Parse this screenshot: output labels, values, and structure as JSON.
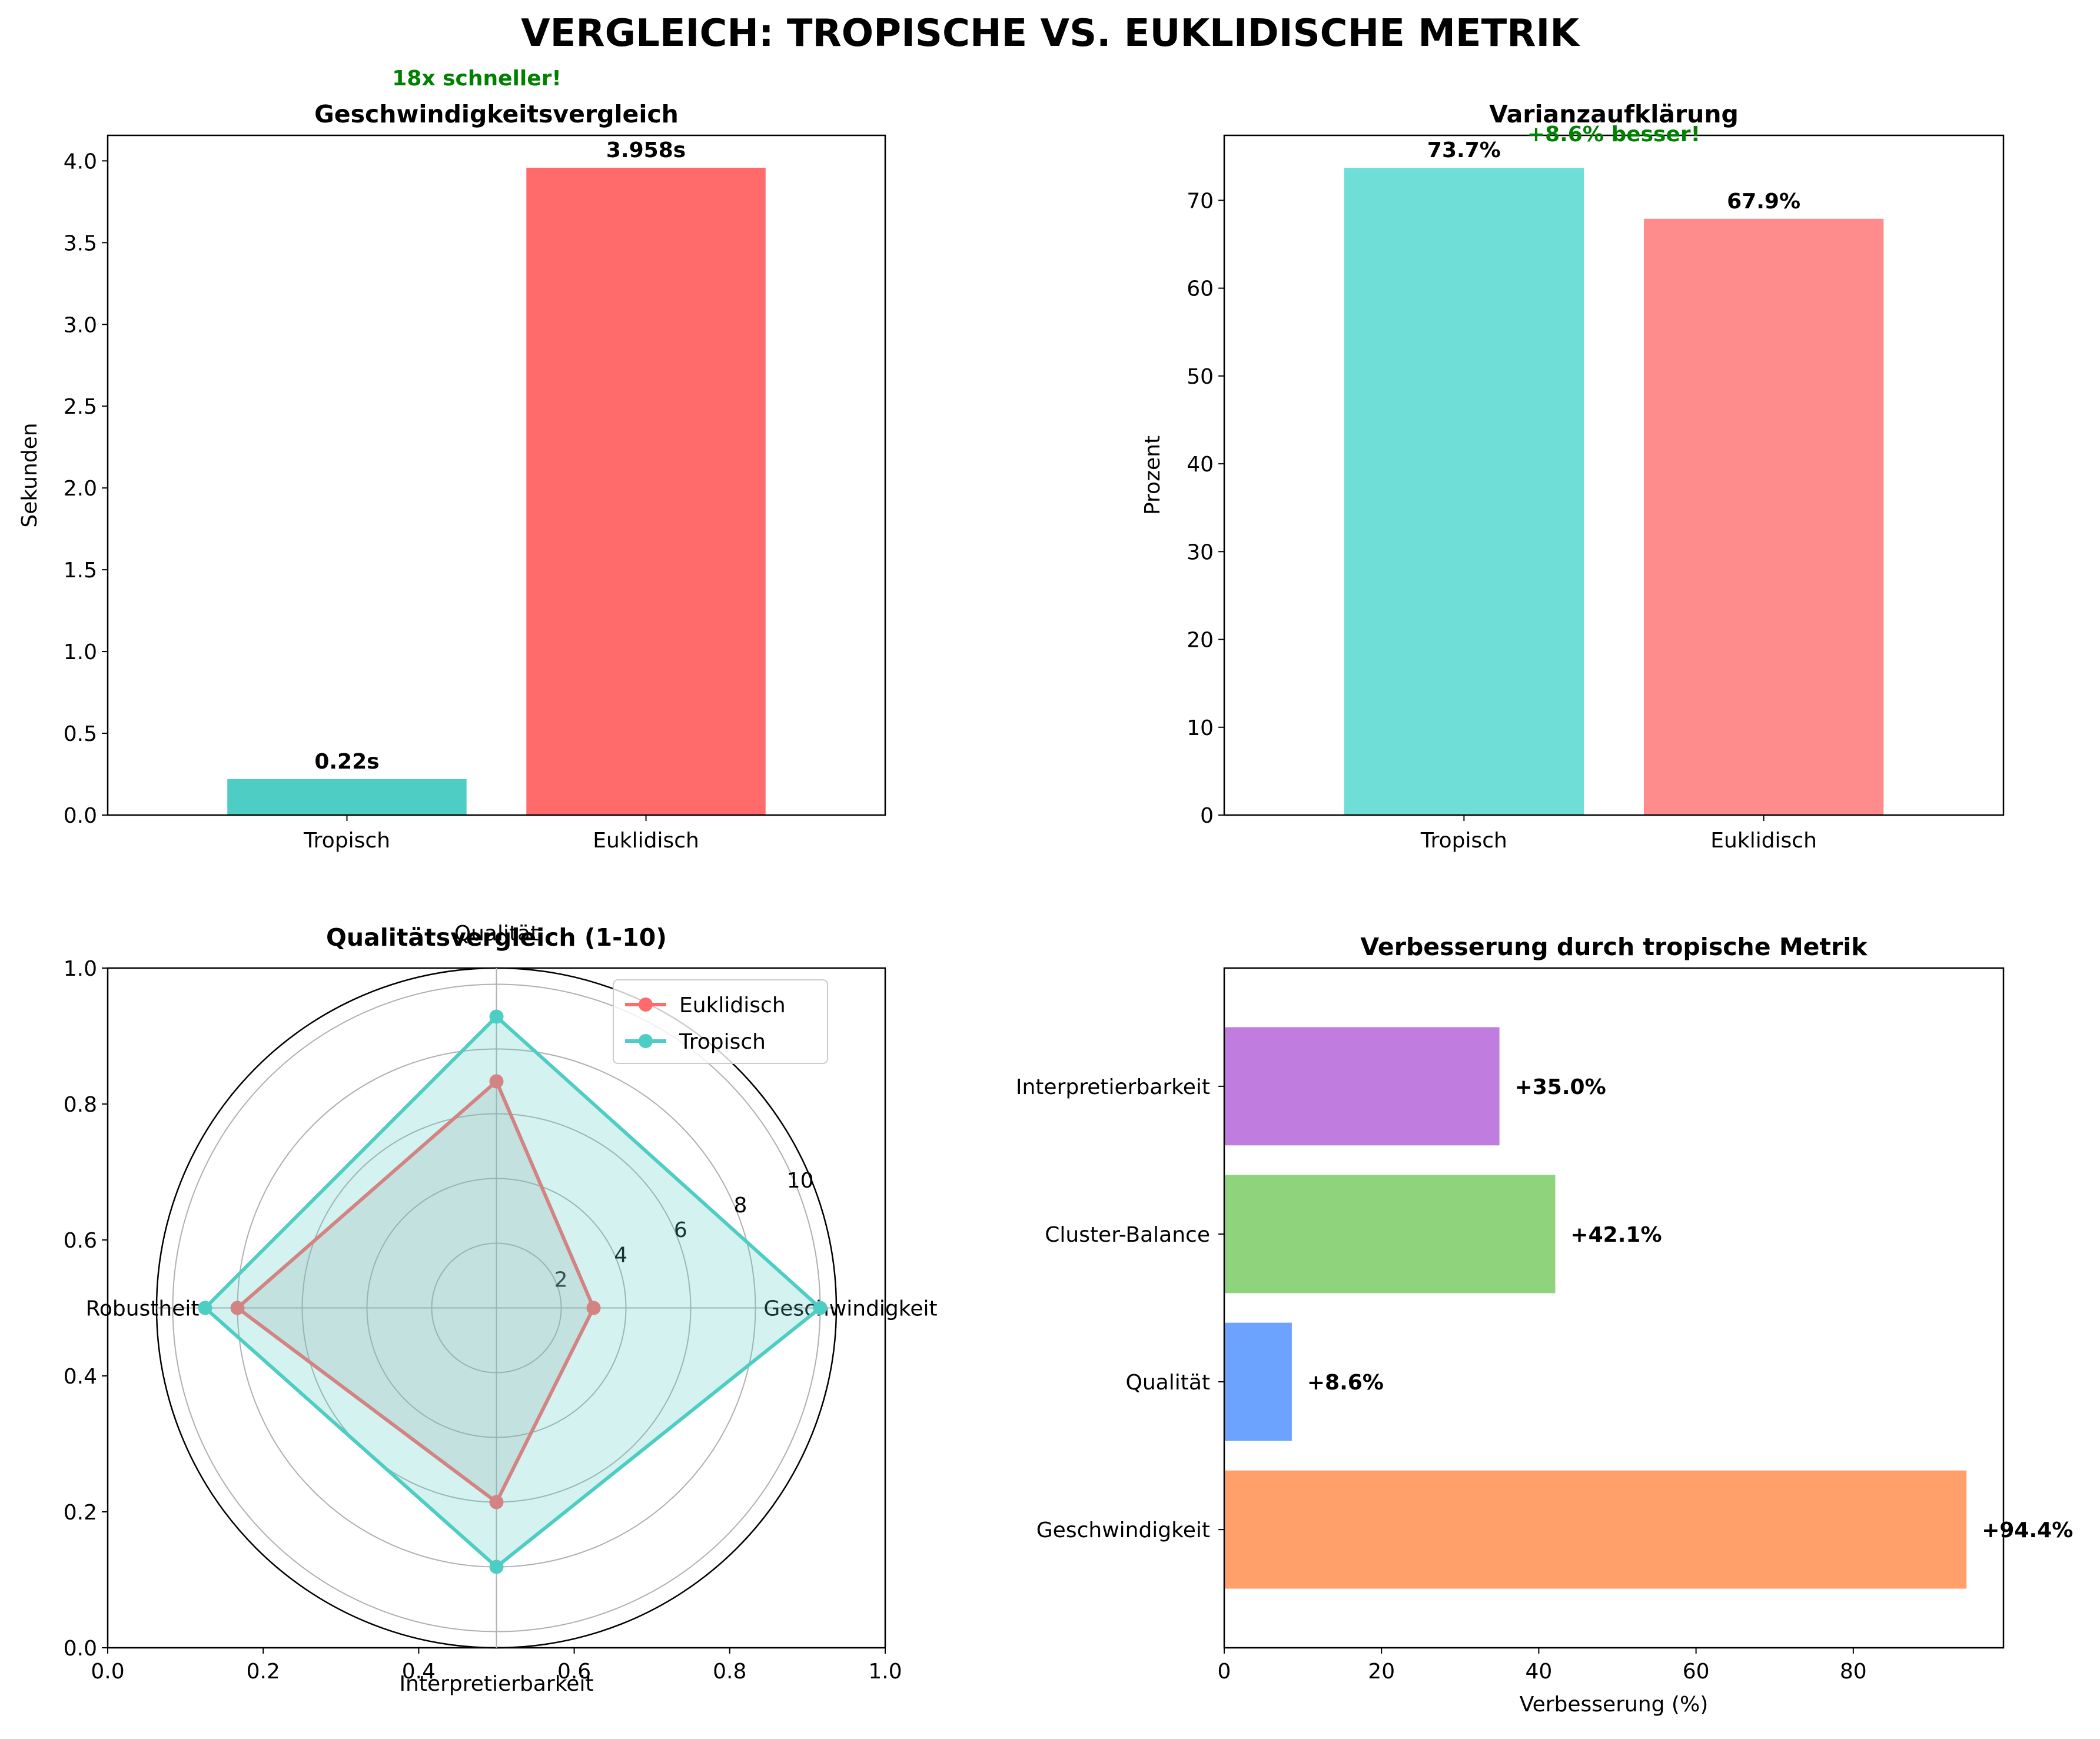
{
  "title": "VERGLEICH: TROPISCHE VS. EUKLIDISCHE METRIK",
  "chart_data": [
    {
      "type": "bar",
      "title": "Geschwindigkeitsvergleich",
      "xlabel": "",
      "ylabel": "Sekunden",
      "categories": [
        "Tropisch",
        "Euklidisch"
      ],
      "values": [
        0.22,
        3.958
      ],
      "value_labels": [
        "0.22s",
        "3.958s"
      ],
      "colors": [
        "#4ECDC4",
        "#FF6B6B"
      ],
      "ylim": [
        0,
        4.156
      ],
      "yticks": [
        0.0,
        0.5,
        1.0,
        1.5,
        2.0,
        2.5,
        3.0,
        3.5,
        4.0
      ],
      "ytick_labels": [
        "0.0",
        "0.5",
        "1.0",
        "1.5",
        "2.0",
        "2.5",
        "3.0",
        "3.5",
        "4.0"
      ],
      "annotation": "18x schneller!"
    },
    {
      "type": "bar",
      "title": "Varianzaufklärung",
      "xlabel": "",
      "ylabel": "Prozent",
      "categories": [
        "Tropisch",
        "Euklidisch"
      ],
      "values": [
        73.7,
        67.9
      ],
      "value_labels": [
        "73.7%",
        "67.9%"
      ],
      "colors": [
        "#6EDED6",
        "#FF8C8C"
      ],
      "ylim": [
        0,
        77.4
      ],
      "yticks": [
        0,
        10,
        20,
        30,
        40,
        50,
        60,
        70
      ],
      "ytick_labels": [
        "0",
        "10",
        "20",
        "30",
        "40",
        "50",
        "60",
        "70"
      ],
      "annotation": "+8.6% besser!"
    },
    {
      "type": "radar",
      "title": "Qualitätsvergleich (1-10)",
      "axes": [
        "Geschwindigkeit",
        "Qualität",
        "Robustheit",
        "Interpretierbarkeit"
      ],
      "rlim": [
        0,
        10.5
      ],
      "rticks": [
        2,
        4,
        6,
        8,
        10
      ],
      "rtick_labels": [
        "2",
        "4",
        "6",
        "8",
        "10"
      ],
      "series": [
        {
          "name": "Euklidisch",
          "values": [
            3,
            7,
            8,
            6
          ],
          "color": "#FF6B6B",
          "fill": "#A9A9A9"
        },
        {
          "name": "Tropisch",
          "values": [
            10,
            9,
            9,
            8
          ],
          "color": "#4ECDC4",
          "fill": "#4ECDC4"
        }
      ],
      "frame_ticks": [
        "0.0",
        "0.2",
        "0.4",
        "0.6",
        "0.8",
        "1.0"
      ],
      "legend_position": "top-right"
    },
    {
      "type": "barh",
      "title": "Verbesserung durch tropische Metrik",
      "xlabel": "Verbesserung (%)",
      "ylabel": "",
      "categories": [
        "Geschwindigkeit",
        "Qualität",
        "Cluster-Balance",
        "Interpretierbarkeit"
      ],
      "values": [
        94.4,
        8.6,
        42.1,
        35.0
      ],
      "value_labels": [
        "+94.4%",
        "+8.6%",
        "+42.1%",
        "+35.0%"
      ],
      "colors": [
        "#FFA06B",
        "#6BA3FF",
        "#8FD47C",
        "#C17CE0"
      ],
      "xlim": [
        0,
        99.1
      ],
      "xticks": [
        0,
        20,
        40,
        60,
        80
      ],
      "xtick_labels": [
        "0",
        "20",
        "40",
        "60",
        "80"
      ]
    }
  ]
}
